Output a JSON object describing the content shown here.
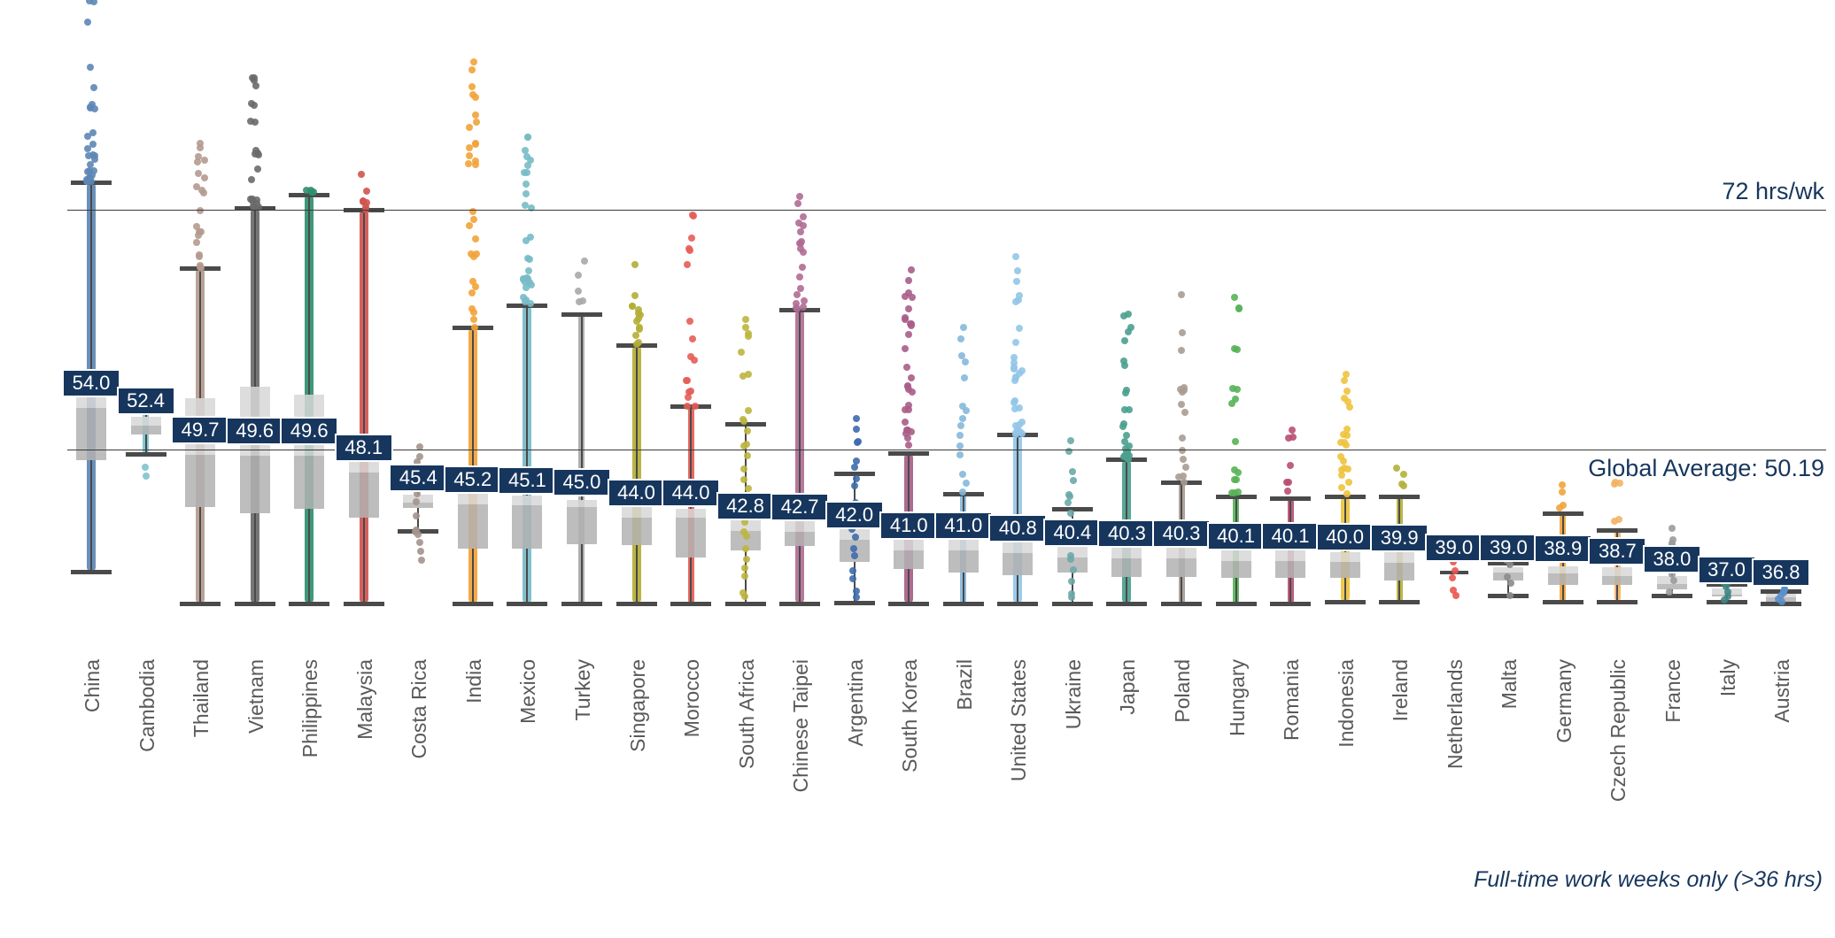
{
  "annotations": {
    "line72_label": "72 hrs/wk",
    "global_avg_label": "Global Average: 50.19"
  },
  "footnote": "Full-time work weeks only (>36 hrs)",
  "colors": {
    "label_bg": "#17365d",
    "label_text": "#ffffff",
    "annotation_text": "#17365d",
    "axis_label_text": "#595959",
    "whisker": "#4a4a4a",
    "box_upper": "#d7d7d7",
    "box_lower": "#b1b1b1",
    "ref_line": "#3a3a3a"
  },
  "chart_data": {
    "type": "boxplot-strip",
    "title": "",
    "units": "hours worked per week",
    "ylim": [
      34,
      92
    ],
    "grid": false,
    "reference_lines": [
      {
        "label": "72 hrs/wk",
        "value": 72
      },
      {
        "label": "Global Average: 50.19",
        "value": 50.19
      }
    ],
    "footnote": "Full-time work weeks only (>36 hrs)",
    "categories": [
      "China",
      "Cambodia",
      "Thailand",
      "Vietnam",
      "Philippines",
      "Malaysia",
      "Costa Rica",
      "India",
      "Mexico",
      "Turkey",
      "Singapore",
      "Morocco",
      "South Africa",
      "Chinese Taipei",
      "Argentina",
      "South Korea",
      "Brazil",
      "United States",
      "Ukraine",
      "Japan",
      "Poland",
      "Hungary",
      "Romania",
      "Indonesia",
      "Ireland",
      "Netherlands",
      "Malta",
      "Germany",
      "Czech Republic",
      "France",
      "Italy",
      "Austria"
    ],
    "series": [
      {
        "name": "China",
        "median_label": "54.0",
        "median": 54.0,
        "q1": 49.2,
        "q3": 55.9,
        "whisker_low": 39.1,
        "whisker_high": 74.5,
        "outlier_max": 91.0,
        "outlier_min": null,
        "color": "#5d87b5",
        "density": "high",
        "box": true
      },
      {
        "name": "Cambodia",
        "median_label": "52.4",
        "median": 52.4,
        "q1": 51.6,
        "q3": 53.2,
        "whisker_low": 49.8,
        "whisker_high": 53.9,
        "outlier_max": 55.2,
        "outlier_min": 47.6,
        "color": "#7cc3ce",
        "density": "med",
        "box": true
      },
      {
        "name": "Thailand",
        "median_label": "49.7",
        "median": 49.7,
        "q1": 45.0,
        "q3": 54.9,
        "whisker_low": 36.2,
        "whisker_high": 66.7,
        "outlier_max": 78.0,
        "outlier_min": null,
        "color": "#b49a8e",
        "density": "high",
        "box": true
      },
      {
        "name": "Vietnam",
        "median_label": "49.6",
        "median": 49.6,
        "q1": 44.4,
        "q3": 55.9,
        "whisker_low": 36.2,
        "whisker_high": 72.2,
        "outlier_max": 84.0,
        "outlier_min": null,
        "color": "#6a6a6a",
        "density": "high",
        "box": true
      },
      {
        "name": "Philippines",
        "median_label": "49.6",
        "median": 49.6,
        "q1": 44.8,
        "q3": 55.2,
        "whisker_low": 36.2,
        "whisker_high": 73.4,
        "outlier_max": 73.8,
        "outlier_min": null,
        "color": "#2f8f6e",
        "density": "high",
        "box": true
      },
      {
        "name": "Malaysia",
        "median_label": "48.1",
        "median": 48.1,
        "q1": 44.0,
        "q3": 50.4,
        "whisker_low": 36.2,
        "whisker_high": 72.0,
        "outlier_max": 75.2,
        "outlier_min": null,
        "color": "#d0544f",
        "density": "high",
        "box": true
      },
      {
        "name": "Costa Rica",
        "median_label": "45.4",
        "median": 45.4,
        "q1": 44.9,
        "q3": 46.1,
        "whisker_low": 42.8,
        "whisker_high": 46.6,
        "outlier_max": 50.4,
        "outlier_min": 37.3,
        "color": "#a3948c",
        "density": "sparse",
        "box": true
      },
      {
        "name": "India",
        "median_label": "45.2",
        "median": 45.2,
        "q1": 41.2,
        "q3": 46.4,
        "whisker_low": 36.2,
        "whisker_high": 61.3,
        "outlier_max": 85.4,
        "outlier_min": null,
        "color": "#f2a339",
        "density": "high",
        "box": true
      },
      {
        "name": "Mexico",
        "median_label": "45.1",
        "median": 45.1,
        "q1": 41.2,
        "q3": 46.0,
        "whisker_low": 36.2,
        "whisker_high": 63.3,
        "outlier_max": 78.6,
        "outlier_min": null,
        "color": "#77bbc7",
        "density": "high",
        "box": true
      },
      {
        "name": "Turkey",
        "median_label": "45.0",
        "median": 45.0,
        "q1": 41.6,
        "q3": 45.6,
        "whisker_low": 36.2,
        "whisker_high": 62.5,
        "outlier_max": 67.3,
        "outlier_min": null,
        "color": "#a8a8a8",
        "density": "med",
        "box": true
      },
      {
        "name": "Singapore",
        "median_label": "44.0",
        "median": 44.0,
        "q1": 41.5,
        "q3": 45.5,
        "whisker_low": 36.2,
        "whisker_high": 59.7,
        "outlier_max": 67.0,
        "outlier_min": null,
        "color": "#b4ae35",
        "density": "high",
        "box": true
      },
      {
        "name": "Morocco",
        "median_label": "44.0",
        "median": 44.0,
        "q1": 40.4,
        "q3": 44.8,
        "whisker_low": 36.2,
        "whisker_high": 54.1,
        "outlier_max": 71.5,
        "outlier_min": null,
        "color": "#e55d56",
        "density": "med",
        "box": true
      },
      {
        "name": "South Africa",
        "median_label": "42.8",
        "median": 42.8,
        "q1": 41.0,
        "q3": 44.5,
        "whisker_low": 36.2,
        "whisker_high": 52.5,
        "outlier_max": 62.0,
        "outlier_min": null,
        "color": "#bdb53e",
        "density": "sparse",
        "box": true
      },
      {
        "name": "Chinese Taipei",
        "median_label": "42.7",
        "median": 42.7,
        "q1": 41.4,
        "q3": 45.9,
        "whisker_low": 36.2,
        "whisker_high": 62.9,
        "outlier_max": 73.2,
        "outlier_min": null,
        "color": "#b06c92",
        "density": "high",
        "box": true
      },
      {
        "name": "Argentina",
        "median_label": "42.0",
        "median": 42.0,
        "q1": 40.0,
        "q3": 43.8,
        "whisker_low": 36.3,
        "whisker_high": 48.0,
        "outlier_max": 53.0,
        "outlier_min": null,
        "color": "#3d6cab",
        "density": "sparse",
        "box": true
      },
      {
        "name": "South Korea",
        "median_label": "41.0",
        "median": 41.0,
        "q1": 39.3,
        "q3": 43.5,
        "whisker_low": 36.2,
        "whisker_high": 49.9,
        "outlier_max": 66.5,
        "outlier_min": null,
        "color": "#a85d88",
        "density": "high",
        "box": true
      },
      {
        "name": "Brazil",
        "median_label": "41.0",
        "median": 41.0,
        "q1": 39.0,
        "q3": 42.5,
        "whisker_low": 36.2,
        "whisker_high": 46.2,
        "outlier_max": 61.3,
        "outlier_min": null,
        "color": "#85b8dc",
        "density": "med",
        "box": true
      },
      {
        "name": "United States",
        "median_label": "40.8",
        "median": 40.8,
        "q1": 38.8,
        "q3": 42.4,
        "whisker_low": 36.2,
        "whisker_high": 51.6,
        "outlier_max": 67.7,
        "outlier_min": null,
        "color": "#92c5e8",
        "density": "high",
        "box": true
      },
      {
        "name": "Ukraine",
        "median_label": "40.4",
        "median": 40.4,
        "q1": 39.0,
        "q3": 41.5,
        "whisker_low": 36.2,
        "whisker_high": 44.8,
        "outlier_max": 51.0,
        "outlier_min": null,
        "color": "#6ba8a9",
        "density": "sparse",
        "box": true
      },
      {
        "name": "Japan",
        "median_label": "40.3",
        "median": 40.3,
        "q1": 38.6,
        "q3": 42.0,
        "whisker_low": 36.2,
        "whisker_high": 49.3,
        "outlier_max": 62.5,
        "outlier_min": null,
        "color": "#4aa08e",
        "density": "high",
        "box": true
      },
      {
        "name": "Poland",
        "median_label": "40.3",
        "median": 40.3,
        "q1": 38.6,
        "q3": 41.8,
        "whisker_low": 36.2,
        "whisker_high": 47.2,
        "outlier_max": 64.3,
        "outlier_min": null,
        "color": "#a89c94",
        "density": "med",
        "box": true
      },
      {
        "name": "Hungary",
        "median_label": "40.1",
        "median": 40.1,
        "q1": 38.5,
        "q3": 41.5,
        "whisker_low": 36.2,
        "whisker_high": 45.9,
        "outlier_max": 64.0,
        "outlier_min": null,
        "color": "#57b257",
        "density": "med",
        "box": true
      },
      {
        "name": "Romania",
        "median_label": "40.1",
        "median": 40.1,
        "q1": 38.5,
        "q3": 41.5,
        "whisker_low": 36.2,
        "whisker_high": 45.8,
        "outlier_max": 52.0,
        "outlier_min": null,
        "color": "#b84f72",
        "density": "med",
        "box": true
      },
      {
        "name": "Indonesia",
        "median_label": "40.0",
        "median": 40.0,
        "q1": 38.5,
        "q3": 40.9,
        "whisker_low": 36.4,
        "whisker_high": 45.9,
        "outlier_max": 57.0,
        "outlier_min": null,
        "color": "#eec33e",
        "density": "high",
        "box": true
      },
      {
        "name": "Ireland",
        "median_label": "39.9",
        "median": 39.9,
        "q1": 38.3,
        "q3": 41.0,
        "whisker_low": 36.4,
        "whisker_high": 45.9,
        "outlier_max": 48.5,
        "outlier_min": null,
        "color": "#b3b13a",
        "density": "med",
        "box": true
      },
      {
        "name": "Netherlands",
        "median_label": "39.0",
        "median": 39.0,
        "q1": null,
        "q3": null,
        "whisker_low": 36.4,
        "whisker_high": 42.3,
        "outlier_max": 42.3,
        "outlier_min": 36.4,
        "color": "#e8554d",
        "density": "sparse",
        "box": false
      },
      {
        "name": "Malta",
        "median_label": "39.0",
        "median": 39.0,
        "q1": 38.3,
        "q3": 39.5,
        "whisker_low": 36.9,
        "whisker_high": 39.9,
        "outlier_max": 41.0,
        "outlier_min": null,
        "color": "#8c8c8c",
        "density": "sparse",
        "box": true
      },
      {
        "name": "Germany",
        "median_label": "38.9",
        "median": 38.9,
        "q1": 37.9,
        "q3": 39.6,
        "whisker_low": 36.4,
        "whisker_high": 44.4,
        "outlier_max": 47.0,
        "outlier_min": null,
        "color": "#f0a43c",
        "density": "med",
        "box": true
      },
      {
        "name": "Czech Republic",
        "median_label": "38.7",
        "median": 38.7,
        "q1": 37.9,
        "q3": 39.5,
        "whisker_low": 36.4,
        "whisker_high": 42.9,
        "outlier_max": 47.2,
        "outlier_min": null,
        "color": "#f3b264",
        "density": "med",
        "box": true
      },
      {
        "name": "France",
        "median_label": "38.0",
        "median": 38.0,
        "q1": 37.5,
        "q3": 38.7,
        "whisker_low": 36.9,
        "whisker_high": 41.0,
        "outlier_max": 43.0,
        "outlier_min": null,
        "color": "#9b9b9b",
        "density": "sparse",
        "box": true
      },
      {
        "name": "Italy",
        "median_label": "37.0",
        "median": 37.0,
        "q1": 36.9,
        "q3": 37.6,
        "whisker_low": 36.4,
        "whisker_high": 38.0,
        "outlier_max": 39.5,
        "outlier_min": 36.5,
        "color": "#3f8682",
        "density": "sparse",
        "box": true
      },
      {
        "name": "Austria",
        "median_label": "36.8",
        "median": 36.8,
        "q1": 36.4,
        "q3": 37.1,
        "whisker_low": 36.2,
        "whisker_high": 37.3,
        "outlier_max": 38.5,
        "outlier_min": 36.2,
        "color": "#5b8fc9",
        "density": "sparse",
        "box": true
      }
    ]
  }
}
